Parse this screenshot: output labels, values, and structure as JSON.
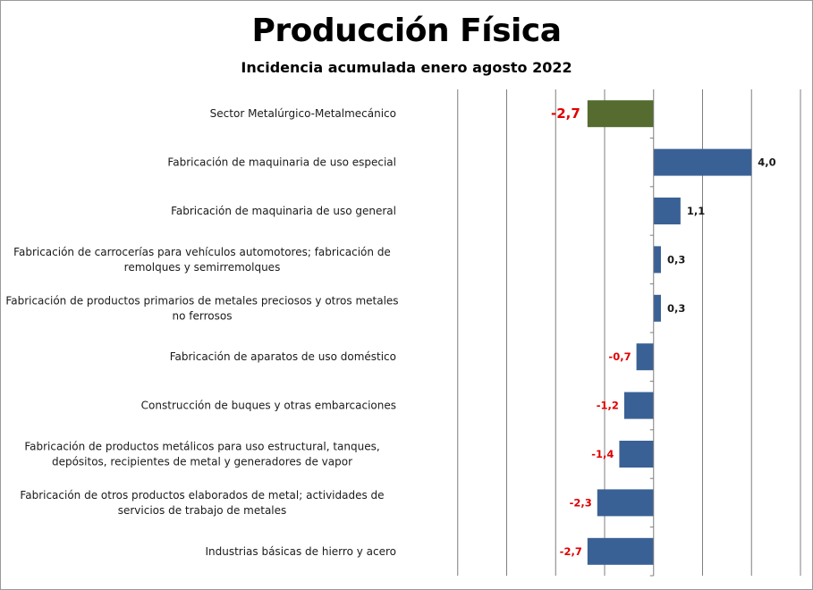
{
  "chart_data": {
    "type": "bar",
    "orientation": "horizontal",
    "title": "Producción Física",
    "subtitle": "Incidencia acumulada  enero agosto  2022",
    "xlabel": "",
    "ylabel": "",
    "xlim": [
      -10,
      6
    ],
    "grid": true,
    "categories": [
      [
        "Sector Metalúrgico-Metalmecánico"
      ],
      [
        "Fabricación de maquinaria de uso especial"
      ],
      [
        "Fabricación de maquinaria de uso general"
      ],
      [
        "Fabricación de carrocerías para vehículos automotores; fabricación de",
        "remolques y semirremolques"
      ],
      [
        "Fabricación de productos primarios de metales preciosos y otros metales",
        "no ferrosos"
      ],
      [
        "Fabricación de aparatos de uso doméstico"
      ],
      [
        "Construcción de buques y otras embarcaciones"
      ],
      [
        "Fabricación de productos metálicos para uso estructural, tanques,",
        "depósitos, recipientes de metal y generadores de vapor"
      ],
      [
        "Fabricación de otros productos elaborados de metal; actividades de",
        "servicios de trabajo de metales"
      ],
      [
        "Industrias básicas de hierro y acero"
      ]
    ],
    "values": [
      -2.7,
      4.0,
      1.1,
      0.3,
      0.3,
      -0.7,
      -1.2,
      -1.4,
      -2.3,
      -2.7
    ],
    "labels": [
      "-2,7",
      "4,0",
      "1,1",
      "0,3",
      "0,3",
      "-0,7",
      "-1,2",
      "-1,4",
      "-2,3",
      "-2,7"
    ],
    "colors": {
      "total_bar": "#556b2f",
      "bar": "#3a6195",
      "negative_label": "#e00000",
      "positive_label": "#1a1a1a",
      "grid": "#7f7f7f"
    }
  }
}
